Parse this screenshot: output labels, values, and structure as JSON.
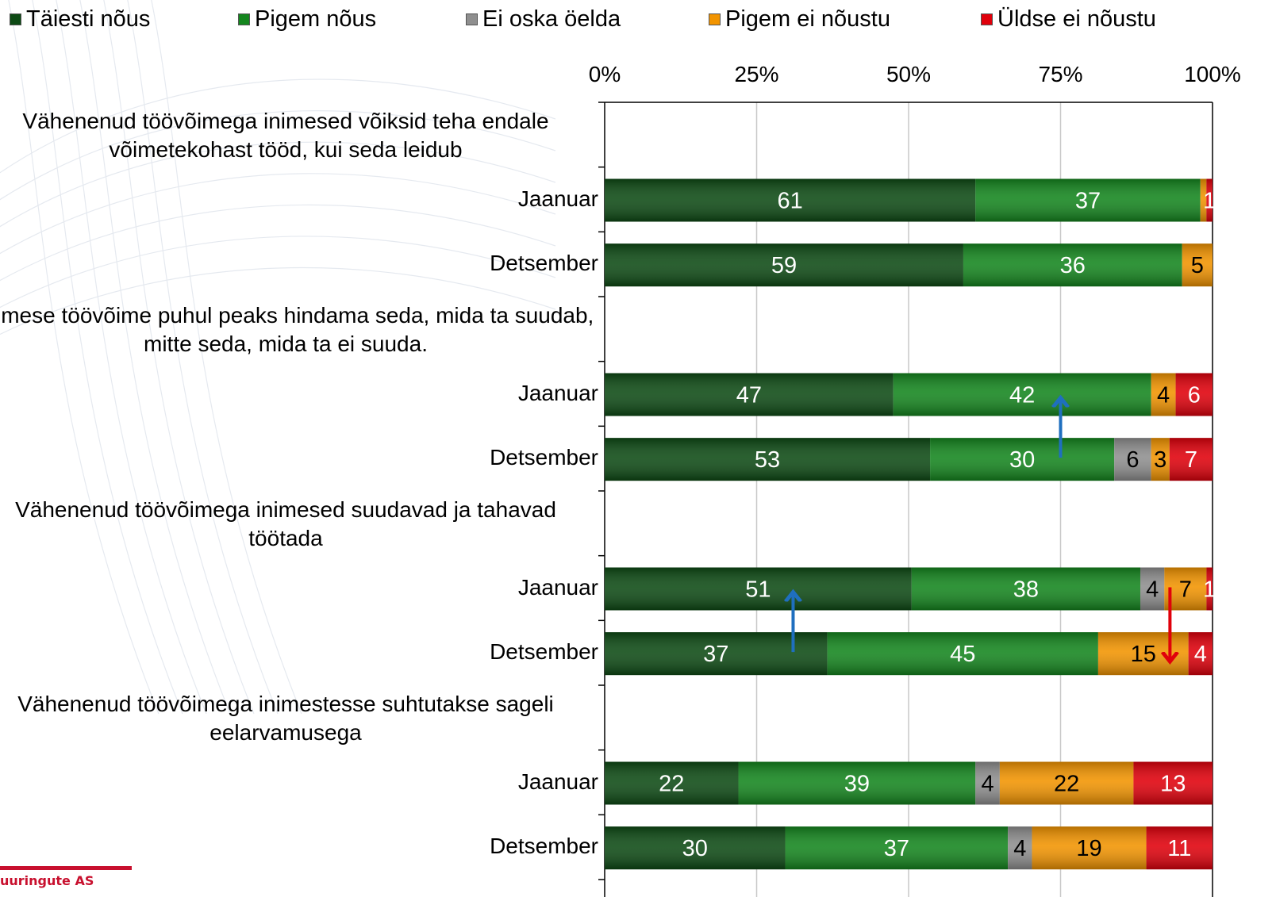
{
  "logo_text": "uuringute AS",
  "chart_data": {
    "type": "bar",
    "orientation": "horizontal",
    "stacked": true,
    "stack_mode": "percent",
    "legend_position": "top",
    "grid": true,
    "xlim": [
      0,
      100
    ],
    "x_ticks": [
      "0%",
      "25%",
      "50%",
      "75%",
      "100%"
    ],
    "series": [
      {
        "name": "Täiesti nõus",
        "color": "#0d4a14"
      },
      {
        "name": "Pigem nõus",
        "color": "#14861e"
      },
      {
        "name": "Ei oska öelda",
        "color": "#8f8f8f"
      },
      {
        "name": "Pigem ei nõustu",
        "color": "#f29400"
      },
      {
        "name": "Üldse ei nõustu",
        "color": "#e0000b"
      }
    ],
    "groups": [
      {
        "question": "Vähenenud töövõimega inimesed võiksid teha endale võimetekohast tööd, kui seda leidub",
        "rows": [
          {
            "label": "Jaanuar",
            "values": [
              61,
              37,
              0,
              1,
              1
            ],
            "labels": [
              "61",
              "37",
              "",
              "",
              "1"
            ]
          },
          {
            "label": "Detsember",
            "values": [
              59,
              36,
              0,
              5,
              0
            ],
            "labels": [
              "59",
              "36",
              "",
              "5",
              ""
            ]
          }
        ]
      },
      {
        "question": "Inimese töövõime puhul peaks hindama seda, mida ta suudab, mitte seda, mida ta ei suuda.",
        "rows": [
          {
            "label": "Jaanuar",
            "values": [
              47,
              42,
              0,
              4,
              6
            ],
            "labels": [
              "47",
              "42",
              "",
              "4",
              "6"
            ]
          },
          {
            "label": "Detsember",
            "values": [
              53,
              30,
              6,
              3,
              7
            ],
            "labels": [
              "53",
              "30",
              "6",
              "3",
              "7"
            ]
          }
        ]
      },
      {
        "question": "Vähenenud töövõimega inimesed suudavad ja tahavad töötada",
        "rows": [
          {
            "label": "Jaanuar",
            "values": [
              51,
              38,
              4,
              7,
              1
            ],
            "labels": [
              "51",
              "38",
              "4",
              "7",
              "1"
            ]
          },
          {
            "label": "Detsember",
            "values": [
              37,
              45,
              0,
              15,
              4
            ],
            "labels": [
              "37",
              "45",
              "",
              "15",
              "4"
            ]
          }
        ]
      },
      {
        "question": "Vähenenud töövõimega inimestesse suhtutakse sageli eelarvamusega",
        "rows": [
          {
            "label": "Jaanuar",
            "values": [
              22,
              39,
              4,
              22,
              13
            ],
            "labels": [
              "22",
              "39",
              "4",
              "22",
              "13"
            ]
          },
          {
            "label": "Detsember",
            "values": [
              30,
              37,
              4,
              19,
              11
            ],
            "labels": [
              "30",
              "37",
              "4",
              "19",
              "11"
            ]
          }
        ]
      }
    ],
    "annotations": [
      {
        "type": "arrow",
        "direction": "up",
        "color": "#1f6fbf",
        "group": 1,
        "x_value": 75
      },
      {
        "type": "arrow",
        "direction": "up",
        "color": "#1f6fbf",
        "group": 2,
        "x_value": 31
      },
      {
        "type": "arrow",
        "direction": "down",
        "color": "#e0000b",
        "group": 2,
        "x_value": 93
      }
    ]
  }
}
